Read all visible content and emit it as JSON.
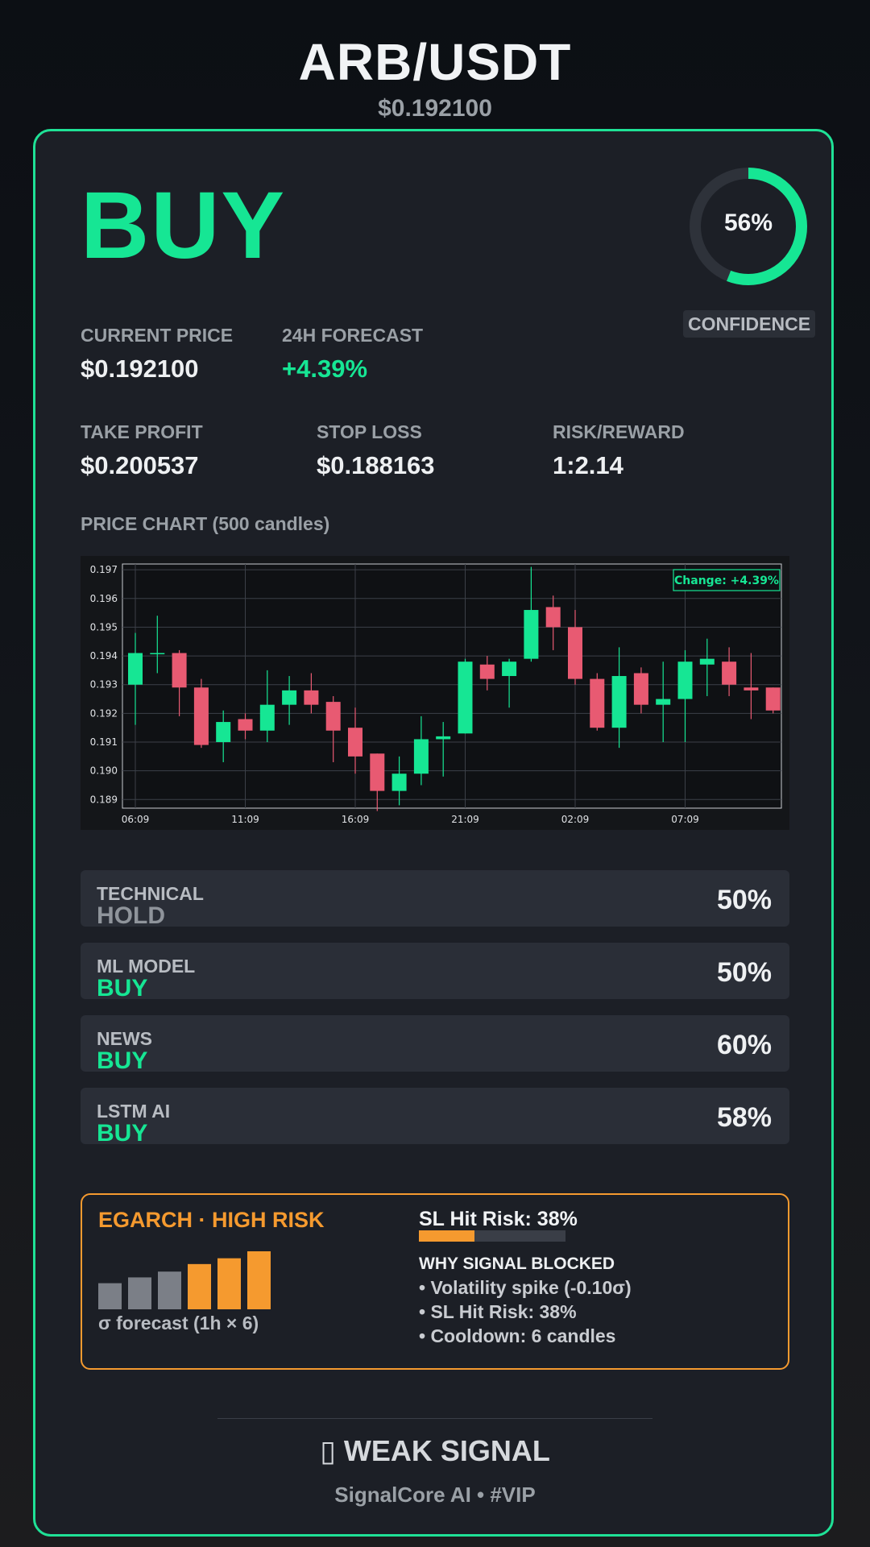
{
  "header": {
    "pair": "ARB/USDT",
    "price": "$0.192100"
  },
  "signal": {
    "label": "BUY",
    "color": "#16e694"
  },
  "confidence": {
    "value": "56%",
    "fraction": 0.56,
    "label": "CONFIDENCE"
  },
  "metrics": {
    "current_price": {
      "label": "CURRENT PRICE",
      "value": "$0.192100"
    },
    "forecast": {
      "label": "24H FORECAST",
      "value": "+4.39%"
    },
    "take_profit": {
      "label": "TAKE PROFIT",
      "value": "$0.200537"
    },
    "stop_loss": {
      "label": "STOP LOSS",
      "value": "$0.188163"
    },
    "risk_reward": {
      "label": "RISK/REWARD",
      "value": "1:2.14"
    }
  },
  "chart_section": {
    "title": "PRICE CHART (500 candles)"
  },
  "chart_data": {
    "type": "candlestick",
    "annotation": "Change: +4.39%",
    "ylim": [
      0.1887,
      0.1972
    ],
    "y_ticks": [
      "0.197",
      "0.196",
      "0.195",
      "0.194",
      "0.193",
      "0.192",
      "0.191",
      "0.190",
      "0.189"
    ],
    "y_tick_values": [
      0.197,
      0.196,
      0.195,
      0.194,
      0.193,
      0.192,
      0.191,
      0.19,
      0.189
    ],
    "x_ticks": [
      "06:09",
      "11:09",
      "16:09",
      "21:09",
      "02:09",
      "07:09"
    ],
    "x_tick_index": [
      0,
      5,
      10,
      15,
      20,
      25
    ],
    "grid": true,
    "up_color": "#16e694",
    "down_color": "#e85a72",
    "candles": [
      {
        "o": 0.193,
        "h": 0.1948,
        "l": 0.1916,
        "c": 0.1941
      },
      {
        "o": 0.1941,
        "h": 0.1954,
        "l": 0.1934,
        "c": 0.1941
      },
      {
        "o": 0.1941,
        "h": 0.1942,
        "l": 0.1919,
        "c": 0.1929
      },
      {
        "o": 0.1929,
        "h": 0.1932,
        "l": 0.1908,
        "c": 0.1909
      },
      {
        "o": 0.191,
        "h": 0.1921,
        "l": 0.1903,
        "c": 0.1917
      },
      {
        "o": 0.1918,
        "h": 0.192,
        "l": 0.1911,
        "c": 0.1914
      },
      {
        "o": 0.1914,
        "h": 0.1935,
        "l": 0.191,
        "c": 0.1923
      },
      {
        "o": 0.1923,
        "h": 0.1933,
        "l": 0.1916,
        "c": 0.1928
      },
      {
        "o": 0.1928,
        "h": 0.1934,
        "l": 0.192,
        "c": 0.1923
      },
      {
        "o": 0.1924,
        "h": 0.1926,
        "l": 0.1903,
        "c": 0.1914
      },
      {
        "o": 0.1915,
        "h": 0.1922,
        "l": 0.1899,
        "c": 0.1905
      },
      {
        "o": 0.1906,
        "h": 0.1906,
        "l": 0.1886,
        "c": 0.1893
      },
      {
        "o": 0.1893,
        "h": 0.1905,
        "l": 0.1888,
        "c": 0.1899
      },
      {
        "o": 0.1899,
        "h": 0.1919,
        "l": 0.1895,
        "c": 0.1911
      },
      {
        "o": 0.1911,
        "h": 0.1917,
        "l": 0.1898,
        "c": 0.1912
      },
      {
        "o": 0.1913,
        "h": 0.1939,
        "l": 0.1913,
        "c": 0.1938
      },
      {
        "o": 0.1937,
        "h": 0.194,
        "l": 0.1928,
        "c": 0.1932
      },
      {
        "o": 0.1933,
        "h": 0.1939,
        "l": 0.1922,
        "c": 0.1938
      },
      {
        "o": 0.1939,
        "h": 0.1971,
        "l": 0.1938,
        "c": 0.1956
      },
      {
        "o": 0.1957,
        "h": 0.1961,
        "l": 0.1942,
        "c": 0.195
      },
      {
        "o": 0.195,
        "h": 0.1956,
        "l": 0.193,
        "c": 0.1932
      },
      {
        "o": 0.1932,
        "h": 0.1934,
        "l": 0.1914,
        "c": 0.1915
      },
      {
        "o": 0.1915,
        "h": 0.1943,
        "l": 0.1908,
        "c": 0.1933
      },
      {
        "o": 0.1934,
        "h": 0.1936,
        "l": 0.192,
        "c": 0.1923
      },
      {
        "o": 0.1923,
        "h": 0.1938,
        "l": 0.191,
        "c": 0.1925
      },
      {
        "o": 0.1925,
        "h": 0.1942,
        "l": 0.191,
        "c": 0.1938
      },
      {
        "o": 0.1937,
        "h": 0.1946,
        "l": 0.1926,
        "c": 0.1939
      },
      {
        "o": 0.1938,
        "h": 0.1943,
        "l": 0.1926,
        "c": 0.193
      },
      {
        "o": 0.1929,
        "h": 0.1941,
        "l": 0.1918,
        "c": 0.1928
      },
      {
        "o": 0.1929,
        "h": 0.1929,
        "l": 0.192,
        "c": 0.1921
      }
    ]
  },
  "components": [
    {
      "name": "TECHNICAL",
      "signal": "HOLD",
      "pct": "50%",
      "kind": "hold"
    },
    {
      "name": "ML MODEL",
      "signal": "BUY",
      "pct": "50%",
      "kind": "buy"
    },
    {
      "name": "NEWS",
      "signal": "BUY",
      "pct": "60%",
      "kind": "buy"
    },
    {
      "name": "LSTM AI",
      "signal": "BUY",
      "pct": "58%",
      "kind": "buy"
    }
  ],
  "risk": {
    "title": "EGARCH · HIGH RISK",
    "sigma_label": "σ forecast (1h × 6)",
    "sigma_values": [
      0.45,
      0.55,
      0.65,
      0.78,
      0.88,
      1.0
    ],
    "sigma_colors": [
      "#7b7f87",
      "#7b7f87",
      "#7b7f87",
      "#f59a2f",
      "#f59a2f",
      "#f59a2f"
    ],
    "sl_hit_label": "SL Hit Risk: 38%",
    "sl_hit_fraction": 0.38,
    "why_title": "WHY SIGNAL BLOCKED",
    "why_items": [
      "• Volatility spike (-0.10σ)",
      "• SL Hit Risk: 38%",
      "• Cooldown: 6 candles"
    ]
  },
  "footer": {
    "status": "▯ WEAK SIGNAL",
    "brand": "SignalCore AI • #VIP"
  }
}
